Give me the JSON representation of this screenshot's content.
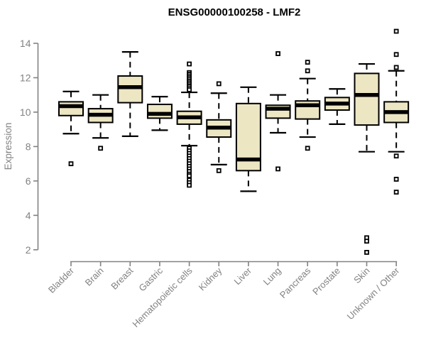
{
  "page": {
    "background": "#ffffff"
  },
  "chart_data": {
    "type": "boxplot",
    "title": "ENSG00000100258 - LMF2",
    "ylabel": "Expression",
    "xlabel": "",
    "yticks": [
      2,
      4,
      6,
      8,
      10,
      12,
      14
    ],
    "ylim": [
      1.6,
      15.0
    ],
    "grid": false,
    "legend": false,
    "colors": {
      "box_fill": "#EDE6C3",
      "box_stroke": "#000000",
      "median": "#000000",
      "whisker": "#000000",
      "axis": "#828282",
      "tick_text": "#828282",
      "title_text": "#000000"
    },
    "categories": [
      "Bladder",
      "Brain",
      "Breast",
      "Gastric",
      "Hematopoietic cells",
      "Kidney",
      "Liver",
      "Lung",
      "Pancreas",
      "Prostate",
      "Skin",
      "Unknown / Other"
    ],
    "series": [
      {
        "name": "Bladder",
        "whisker_low": 8.75,
        "q1": 9.8,
        "median": 10.35,
        "q3": 10.6,
        "whisker_high": 11.2,
        "outliers": [
          7.0
        ]
      },
      {
        "name": "Brain",
        "whisker_low": 8.5,
        "q1": 9.4,
        "median": 9.85,
        "q3": 10.2,
        "whisker_high": 11.0,
        "outliers": [
          7.9
        ]
      },
      {
        "name": "Breast",
        "whisker_low": 8.6,
        "q1": 10.55,
        "median": 11.45,
        "q3": 12.1,
        "whisker_high": 13.5,
        "outliers": []
      },
      {
        "name": "Gastric",
        "whisker_low": 8.95,
        "q1": 9.65,
        "median": 9.9,
        "q3": 10.45,
        "whisker_high": 10.9,
        "outliers": []
      },
      {
        "name": "Hematopoietic cells",
        "whisker_low": 8.05,
        "q1": 9.3,
        "median": 9.7,
        "q3": 10.05,
        "whisker_high": 11.15,
        "outliers": [
          12.8,
          12.3,
          12.2,
          12.1,
          12.0,
          11.9,
          11.8,
          11.7,
          11.6,
          11.5,
          11.4,
          11.3,
          7.9,
          7.75,
          7.6,
          7.45,
          7.3,
          7.15,
          7.0,
          6.85,
          6.7,
          6.55,
          6.4,
          6.3,
          6.05,
          5.9,
          5.75
        ]
      },
      {
        "name": "Kidney",
        "whisker_low": 6.95,
        "q1": 8.55,
        "median": 9.1,
        "q3": 9.55,
        "whisker_high": 11.1,
        "outliers": [
          11.65,
          6.6
        ]
      },
      {
        "name": "Liver",
        "whisker_low": 5.4,
        "q1": 6.6,
        "median": 7.25,
        "q3": 10.5,
        "whisker_high": 11.45,
        "outliers": []
      },
      {
        "name": "Lung",
        "whisker_low": 8.8,
        "q1": 9.65,
        "median": 10.2,
        "q3": 10.4,
        "whisker_high": 11.0,
        "outliers": [
          13.4,
          6.7
        ]
      },
      {
        "name": "Pancreas",
        "whisker_low": 8.55,
        "q1": 9.6,
        "median": 10.4,
        "q3": 10.65,
        "whisker_high": 11.95,
        "outliers": [
          12.9,
          12.4,
          7.9
        ]
      },
      {
        "name": "Prostate",
        "whisker_low": 9.3,
        "q1": 10.12,
        "median": 10.5,
        "q3": 10.85,
        "whisker_high": 11.35,
        "outliers": []
      },
      {
        "name": "Skin",
        "whisker_low": 7.7,
        "q1": 9.25,
        "median": 11.0,
        "q3": 12.25,
        "whisker_high": 12.8,
        "outliers": [
          2.7,
          2.5,
          1.85
        ]
      },
      {
        "name": "Unknown / Other",
        "whisker_low": 7.7,
        "q1": 9.4,
        "median": 10.0,
        "q3": 10.6,
        "whisker_high": 12.4,
        "outliers": [
          14.7,
          13.35,
          12.6,
          7.45,
          6.1,
          5.35
        ]
      }
    ]
  }
}
